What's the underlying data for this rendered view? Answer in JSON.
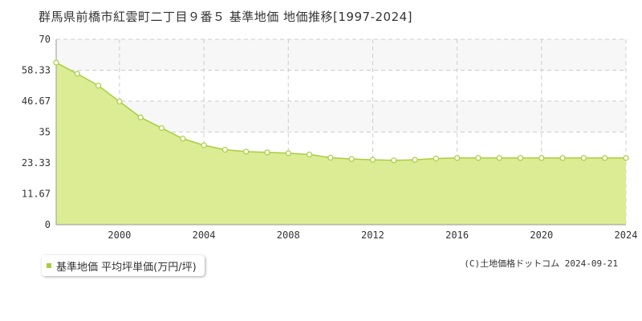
{
  "title": "群馬県前橋市紅雲町二丁目９番５ 基準地価 地価推移[1997-2024]",
  "legend_label": "基準地価 平均坪単価(万円/坪)",
  "copyright": "(C)土地価格ドットコム 2024-09-21",
  "colors": {
    "fill": "#dcec95",
    "line": "#a7cf3a",
    "band": "#f7f7f7",
    "grid": "#cccccc"
  },
  "chart_data": {
    "type": "area",
    "title": "群馬県前橋市紅雲町二丁目９番５ 基準地価 地価推移[1997-2024]",
    "xlabel": "",
    "ylabel": "",
    "xlim": [
      1997,
      2024
    ],
    "ylim": [
      0,
      70
    ],
    "x_ticks": [
      "2000",
      "2004",
      "2008",
      "2012",
      "2016",
      "2020",
      "2024"
    ],
    "y_ticks": [
      "0",
      "11.67",
      "23.33",
      "35",
      "46.67",
      "58.33",
      "70"
    ],
    "grid": true,
    "legend_position": "bottom-left",
    "series": [
      {
        "name": "基準地価 平均坪単価(万円/坪)",
        "x": [
          1997,
          1998,
          1999,
          2000,
          2001,
          2002,
          2003,
          2004,
          2005,
          2006,
          2007,
          2008,
          2009,
          2010,
          2011,
          2012,
          2013,
          2014,
          2015,
          2016,
          2017,
          2018,
          2019,
          2020,
          2021,
          2022,
          2023,
          2024
        ],
        "values": [
          61.2,
          57.0,
          52.5,
          46.5,
          40.5,
          36.5,
          32.5,
          30.0,
          28.3,
          27.6,
          27.3,
          27.0,
          26.5,
          25.3,
          24.8,
          24.5,
          24.3,
          24.5,
          25.0,
          25.2,
          25.2,
          25.2,
          25.2,
          25.2,
          25.2,
          25.2,
          25.2,
          25.2
        ]
      }
    ]
  }
}
